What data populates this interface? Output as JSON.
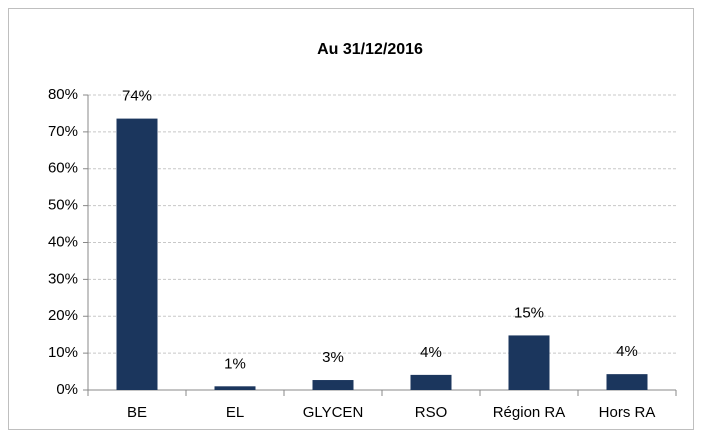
{
  "chart_data": {
    "type": "bar",
    "title": "Au 31/12/2016",
    "categories": [
      "BE",
      "EL",
      "GLYCEN",
      "RSO",
      "Région RA",
      "Hors RA"
    ],
    "values": [
      73.6,
      1.0,
      2.7,
      4.1,
      14.8,
      4.3
    ],
    "value_labels": [
      "74%",
      "1%",
      "3%",
      "4%",
      "15%",
      "4%"
    ],
    "color": "#1b365d",
    "ylim": [
      0,
      80
    ],
    "yticks": [
      {
        "value": 0,
        "label": "0%"
      },
      {
        "value": 10,
        "label": "10%"
      },
      {
        "value": 20,
        "label": "20%"
      },
      {
        "value": 30,
        "label": "30%"
      },
      {
        "value": 40,
        "label": "40%"
      },
      {
        "value": 50,
        "label": "50%"
      },
      {
        "value": 60,
        "label": "60%"
      },
      {
        "value": 70,
        "label": "70%"
      },
      {
        "value": 80,
        "label": "80%"
      }
    ],
    "grid": true
  }
}
